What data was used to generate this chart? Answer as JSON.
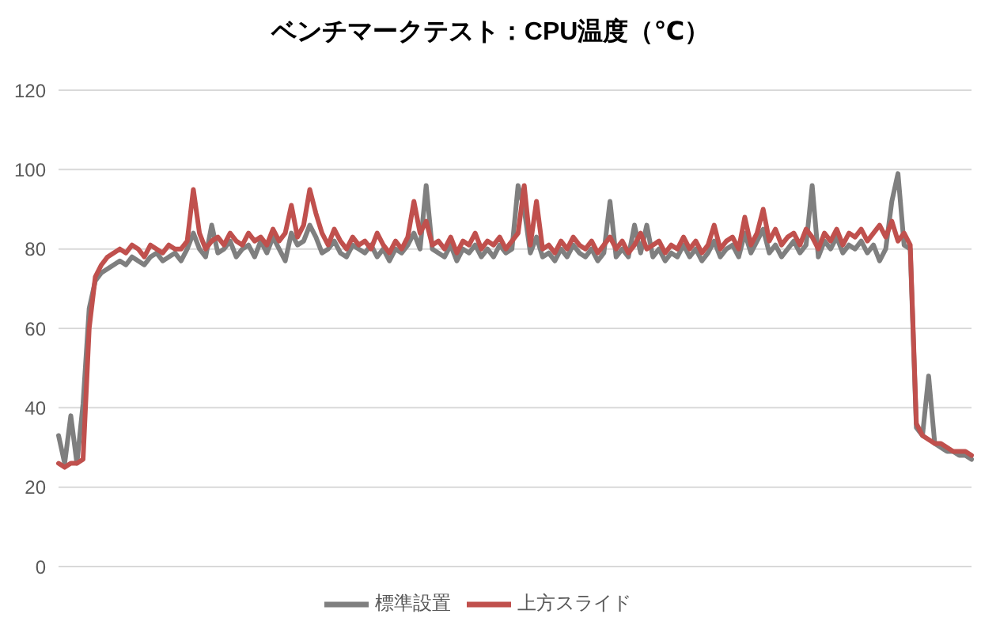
{
  "chart_data": {
    "type": "line",
    "title": "ベンチマークテスト：CPU温度（℃）",
    "categories": [
      null,
      null,
      null,
      null,
      null,
      null,
      null,
      null,
      null,
      null,
      null,
      null,
      null,
      null,
      null,
      null,
      null,
      null,
      null,
      null,
      null,
      null,
      null,
      null,
      null,
      null,
      null,
      null,
      null,
      null,
      null,
      null,
      null,
      null,
      null,
      null,
      null,
      null,
      null,
      null,
      null,
      null,
      null,
      null,
      null,
      null,
      null,
      null,
      null,
      null,
      null,
      null,
      null,
      null,
      null,
      null,
      null,
      null,
      null,
      null,
      null,
      null,
      null,
      null,
      null,
      null,
      null,
      null,
      null,
      null,
      null,
      null,
      null,
      null,
      null,
      null,
      null,
      null,
      null,
      null,
      null,
      null,
      null,
      null,
      null,
      null,
      null,
      null,
      null,
      null,
      null,
      null,
      null,
      null,
      null,
      null,
      null,
      null,
      null,
      null,
      null,
      null,
      null,
      null,
      null,
      null,
      null,
      null,
      null,
      null,
      null,
      null,
      null,
      null,
      null,
      null,
      null,
      null,
      null,
      null,
      null,
      null,
      null,
      null,
      null,
      null,
      null,
      null,
      null,
      null,
      null,
      null,
      null,
      null,
      null,
      null,
      null,
      null,
      null,
      null,
      null,
      null,
      null,
      null,
      null,
      null,
      null,
      null,
      null,
      null
    ],
    "series": [
      {
        "name": "標準設置",
        "color": "#7f7f7f",
        "values": [
          33,
          26,
          38,
          26,
          41,
          65,
          72,
          74,
          75,
          76,
          77,
          76,
          78,
          77,
          76,
          78,
          79,
          77,
          78,
          79,
          77,
          80,
          84,
          80,
          78,
          86,
          79,
          80,
          82,
          78,
          80,
          81,
          78,
          82,
          79,
          83,
          80,
          77,
          84,
          81,
          82,
          86,
          83,
          79,
          80,
          82,
          79,
          78,
          81,
          80,
          79,
          81,
          78,
          80,
          77,
          80,
          79,
          81,
          84,
          80,
          96,
          80,
          79,
          78,
          81,
          77,
          80,
          79,
          81,
          78,
          80,
          78,
          81,
          79,
          80,
          96,
          90,
          79,
          83,
          78,
          79,
          77,
          80,
          78,
          81,
          79,
          78,
          80,
          77,
          79,
          92,
          78,
          80,
          78,
          86,
          79,
          86,
          78,
          80,
          77,
          79,
          78,
          81,
          78,
          80,
          77,
          79,
          82,
          78,
          80,
          81,
          78,
          84,
          79,
          82,
          85,
          79,
          81,
          78,
          80,
          82,
          79,
          81,
          96,
          78,
          82,
          80,
          83,
          79,
          81,
          80,
          82,
          79,
          81,
          77,
          80,
          92,
          99,
          81,
          80,
          35,
          33,
          48,
          31,
          30,
          29,
          29,
          28,
          28,
          27
        ]
      },
      {
        "name": "上方スライド",
        "color": "#c0504d",
        "values": [
          26,
          25,
          26,
          26,
          27,
          60,
          73,
          76,
          78,
          79,
          80,
          79,
          81,
          80,
          78,
          81,
          80,
          79,
          81,
          80,
          80,
          82,
          95,
          84,
          80,
          82,
          83,
          81,
          84,
          82,
          81,
          84,
          82,
          83,
          81,
          85,
          82,
          84,
          91,
          83,
          86,
          95,
          89,
          84,
          81,
          85,
          82,
          80,
          83,
          81,
          82,
          80,
          84,
          81,
          79,
          82,
          80,
          83,
          92,
          84,
          87,
          81,
          82,
          80,
          83,
          79,
          82,
          81,
          84,
          80,
          82,
          81,
          83,
          80,
          82,
          84,
          96,
          81,
          92,
          80,
          81,
          79,
          82,
          80,
          83,
          81,
          80,
          82,
          79,
          81,
          83,
          80,
          82,
          79,
          81,
          84,
          80,
          81,
          82,
          79,
          81,
          80,
          83,
          80,
          82,
          79,
          81,
          86,
          80,
          82,
          83,
          80,
          88,
          81,
          84,
          90,
          82,
          85,
          81,
          83,
          84,
          81,
          85,
          83,
          80,
          84,
          82,
          85,
          81,
          84,
          83,
          85,
          82,
          84,
          86,
          83,
          87,
          82,
          84,
          81,
          36,
          33,
          32,
          31,
          31,
          30,
          29,
          29,
          29,
          28
        ]
      }
    ],
    "ylim": [
      0,
      120
    ],
    "yticks": [
      0,
      20,
      40,
      60,
      80,
      100,
      120
    ],
    "grid": "y",
    "legend": "bottom",
    "tick_labels": "y",
    "marker": "none",
    "line_style": "solid"
  }
}
